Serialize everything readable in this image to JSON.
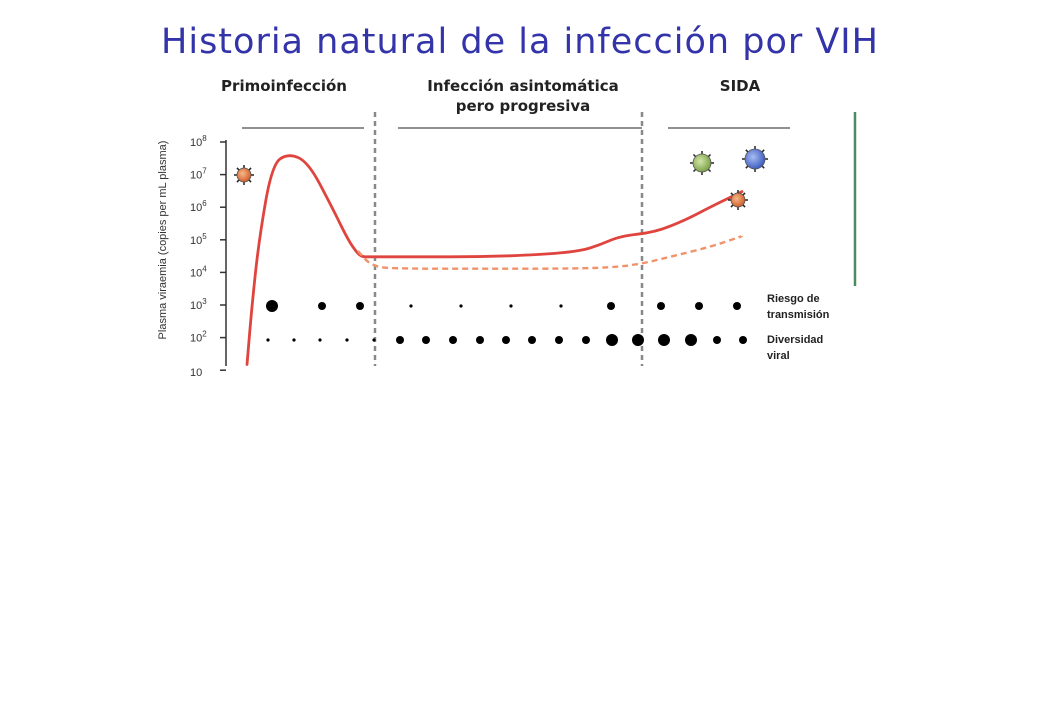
{
  "title": "Historia natural de la infección por VIH",
  "phases": {
    "primary": "Primoinfección",
    "asymptomatic_line1": "Infección asintomática",
    "asymptomatic_line2": "pero progresiva",
    "aids": "SIDA"
  },
  "side_labels": {
    "risk_line1": "Riesgo de",
    "risk_line2": "transmisión",
    "diversity_line1": "Diversidad",
    "diversity_line2": "viral"
  },
  "colors": {
    "title": "#3333aa",
    "viremia_line": "#e0443e",
    "cd4_dashed": "#f0926a",
    "phase_divider": "#888888",
    "green_bar": "#4a8a5e"
  },
  "chart_data": {
    "type": "line",
    "ylabel": "Plasma viraemia (copies per mL plasma)",
    "yscale": "log",
    "ylim": [
      10,
      100000000
    ],
    "yticks": [
      "10^8",
      "10^7",
      "10^6",
      "10^5",
      "10^4",
      "10^3",
      "10^2",
      "10"
    ],
    "series": [
      {
        "values": [
          15,
          1000,
          100000,
          20000000,
          45000000,
          25000000,
          1000000,
          100000,
          40000,
          30000,
          30000,
          30000,
          30000,
          30000,
          35000,
          45000,
          70000,
          130000,
          170000,
          400000,
          1000000,
          3000000
        ]
      },
      {
        "style": "dashed",
        "values": [
          45000,
          15000,
          13000,
          13000,
          13000,
          14000,
          18000,
          30000,
          60000,
          130000
        ]
      }
    ],
    "dot_rows": [
      {
        "sizes": [
          3,
          2,
          3,
          2,
          3,
          1,
          1,
          1,
          1,
          1,
          2,
          3,
          3
        ]
      },
      {
        "sizes": [
          1,
          1,
          1,
          1,
          1,
          1,
          1,
          1,
          1,
          1,
          1,
          1,
          1,
          1,
          1,
          2,
          2,
          2,
          3,
          3,
          2
        ]
      }
    ],
    "icons": [
      "virus-orange-icon",
      "virus-green-icon",
      "virus-blue-icon",
      "virus-orange-icon"
    ]
  }
}
